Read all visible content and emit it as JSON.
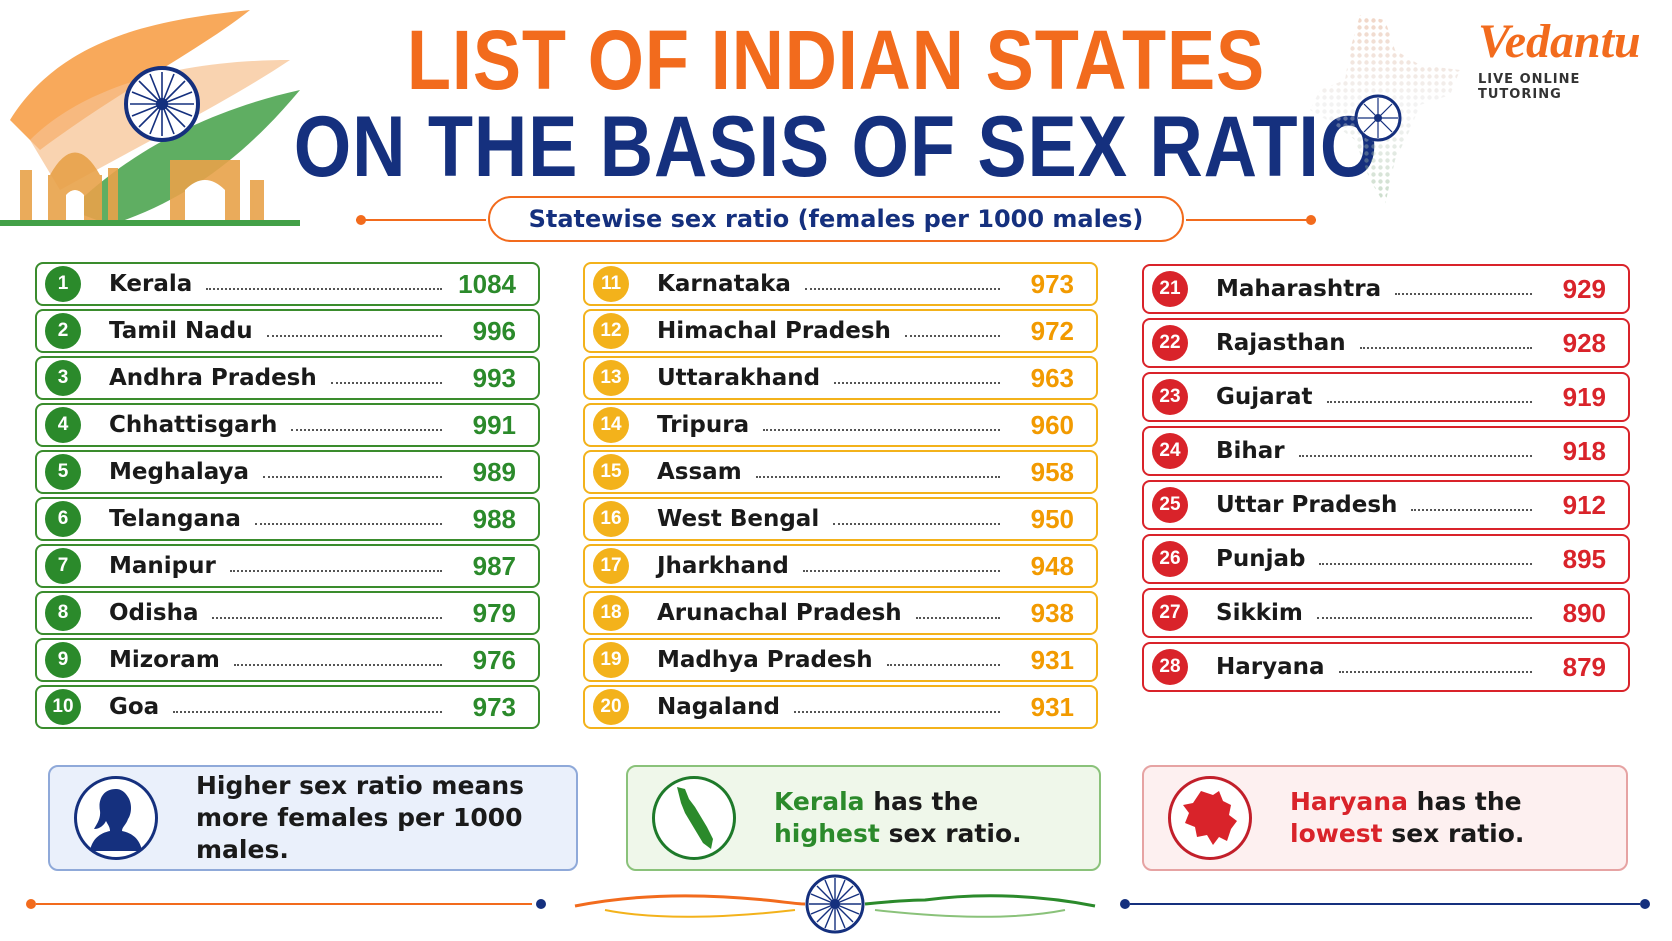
{
  "header": {
    "title_line1": "LIST OF INDIAN STATES",
    "title_line2": "ON THE BASIS OF SEX RATIO",
    "subtitle": "Statewise sex ratio (females per 1000 males)"
  },
  "logo": {
    "name": "Vedantu",
    "tagline": "LIVE ONLINE TUTORING"
  },
  "colors": {
    "orange": "#f26b1d",
    "navy": "#15307e",
    "green": "#2b8a2b",
    "amber": "#f3b21b",
    "red": "#d9232a"
  },
  "columns": [
    {
      "group": "high",
      "rows": [
        {
          "rank": "1",
          "state": "Kerala",
          "value": "1084"
        },
        {
          "rank": "2",
          "state": "Tamil Nadu",
          "value": "996"
        },
        {
          "rank": "3",
          "state": "Andhra Pradesh",
          "value": "993"
        },
        {
          "rank": "4",
          "state": "Chhattisgarh",
          "value": "991"
        },
        {
          "rank": "5",
          "state": "Meghalaya",
          "value": "989"
        },
        {
          "rank": "6",
          "state": "Telangana",
          "value": "988"
        },
        {
          "rank": "7",
          "state": "Manipur",
          "value": "987"
        },
        {
          "rank": "8",
          "state": "Odisha",
          "value": "979"
        },
        {
          "rank": "9",
          "state": "Mizoram",
          "value": "976"
        },
        {
          "rank": "10",
          "state": "Goa",
          "value": "973"
        }
      ]
    },
    {
      "group": "middle",
      "rows": [
        {
          "rank": "11",
          "state": "Karnataka",
          "value": "973"
        },
        {
          "rank": "12",
          "state": "Himachal Pradesh",
          "value": "972"
        },
        {
          "rank": "13",
          "state": "Uttarakhand",
          "value": "963"
        },
        {
          "rank": "14",
          "state": "Tripura",
          "value": "960"
        },
        {
          "rank": "15",
          "state": "Assam",
          "value": "958"
        },
        {
          "rank": "16",
          "state": "West Bengal",
          "value": "950"
        },
        {
          "rank": "17",
          "state": "Jharkhand",
          "value": "948"
        },
        {
          "rank": "18",
          "state": "Arunachal Pradesh",
          "value": "938"
        },
        {
          "rank": "19",
          "state": "Madhya Pradesh",
          "value": "931"
        },
        {
          "rank": "20",
          "state": "Nagaland",
          "value": "931"
        }
      ]
    },
    {
      "group": "low",
      "rows": [
        {
          "rank": "21",
          "state": "Maharashtra",
          "value": "929"
        },
        {
          "rank": "22",
          "state": "Rajasthan",
          "value": "928"
        },
        {
          "rank": "23",
          "state": "Gujarat",
          "value": "919"
        },
        {
          "rank": "24",
          "state": "Bihar",
          "value": "918"
        },
        {
          "rank": "25",
          "state": "Uttar Pradesh",
          "value": "912"
        },
        {
          "rank": "26",
          "state": "Punjab",
          "value": "895"
        },
        {
          "rank": "27",
          "state": "Sikkim",
          "value": "890"
        },
        {
          "rank": "28",
          "state": "Haryana",
          "value": "879"
        }
      ]
    }
  ],
  "info": {
    "female": {
      "icon": "woman-silhouette-icon",
      "line1": "Higher sex ratio means",
      "line2": "more females per 1000 males."
    },
    "kerala": {
      "icon": "kerala-map-icon",
      "highlight1": "Kerala",
      "text1": " has the",
      "highlight2": "highest",
      "text2": " sex ratio."
    },
    "haryana": {
      "icon": "haryana-map-icon",
      "highlight1": "Haryana",
      "text1": " has the",
      "highlight2": "lowest",
      "text2": " sex ratio."
    }
  }
}
